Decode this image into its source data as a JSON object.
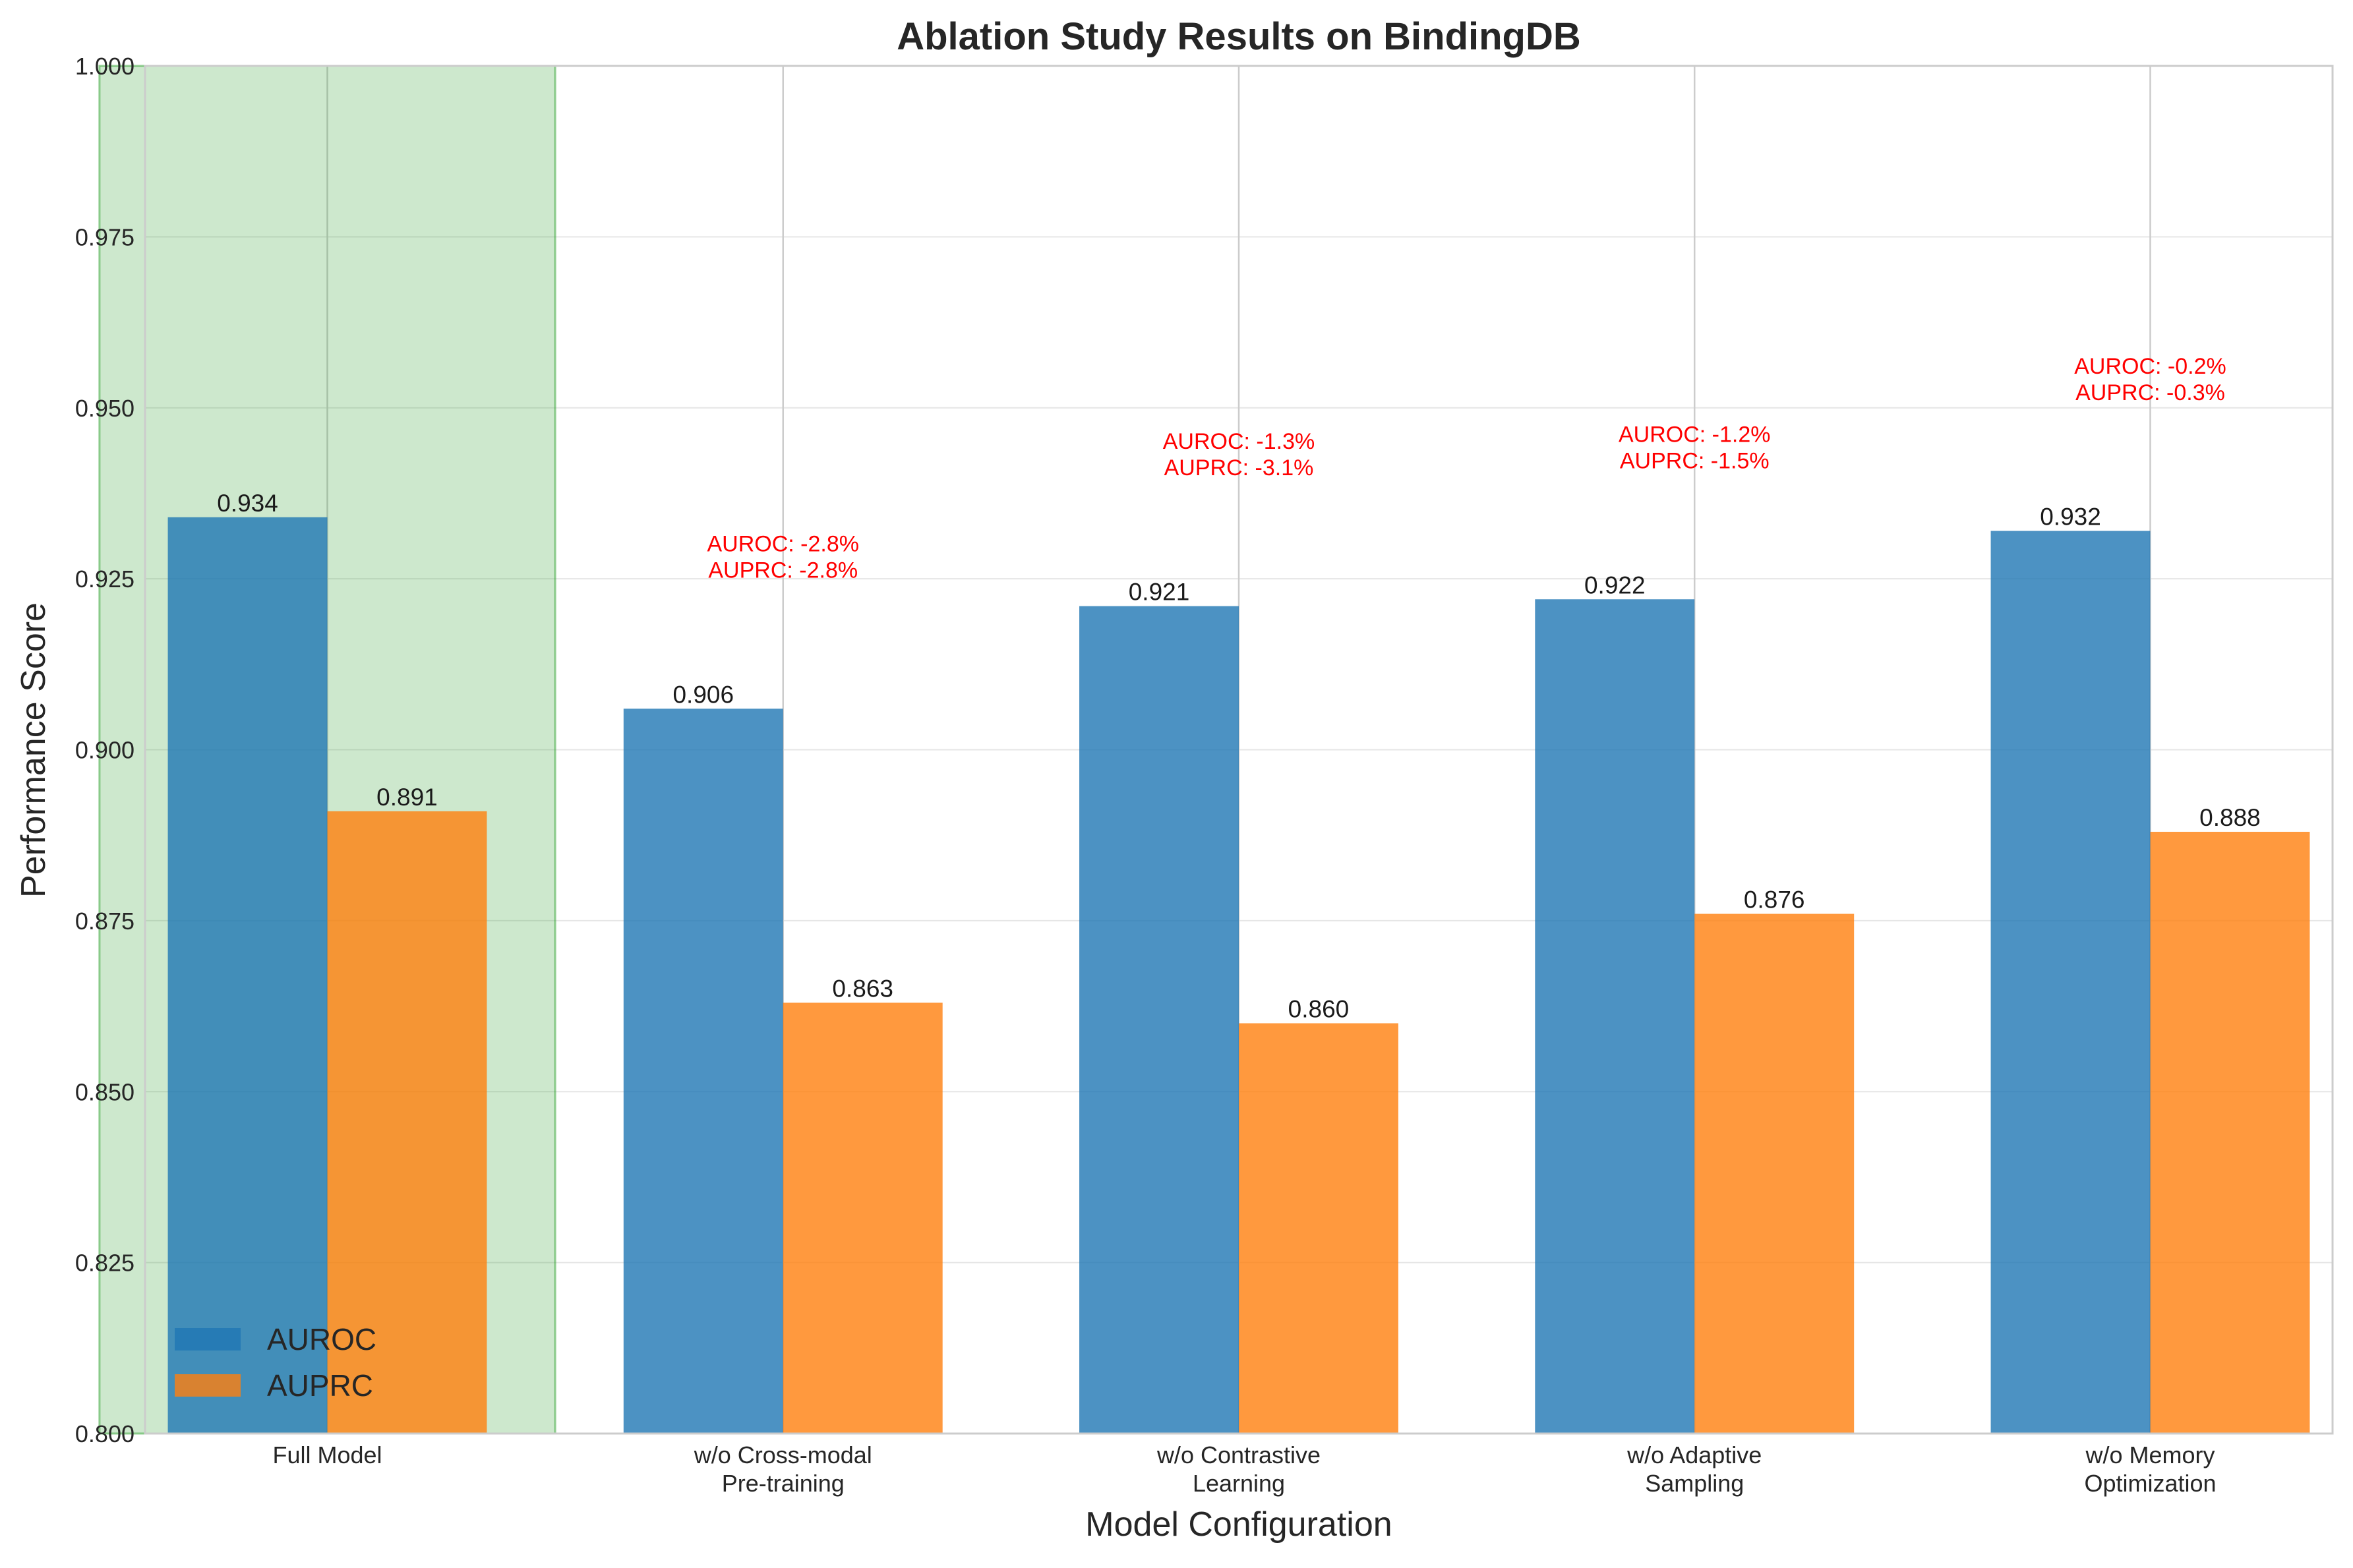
{
  "chart_data": {
    "type": "bar",
    "title": "Ablation Study Results on BindingDB",
    "xlabel": "Model Configuration",
    "ylabel": "Performance Score",
    "ylim": [
      0.8,
      1.0
    ],
    "yticks": [
      "0.800",
      "0.825",
      "0.850",
      "0.875",
      "0.900",
      "0.925",
      "0.950",
      "0.975",
      "1.000"
    ],
    "grid": true,
    "legend_position": "bottom-left",
    "categories": [
      [
        "Full Model"
      ],
      [
        "w/o Cross-modal",
        "Pre-training"
      ],
      [
        "w/o Contrastive",
        "Learning"
      ],
      [
        "w/o Adaptive",
        "Sampling"
      ],
      [
        "w/o Memory",
        "Optimization"
      ]
    ],
    "highlight_category": 0,
    "highlight_color": "#2ca02c",
    "series": [
      {
        "name": "AUROC",
        "color": "#1f77b4",
        "values": [
          0.934,
          0.906,
          0.921,
          0.922,
          0.932
        ],
        "labels": [
          "0.934",
          "0.906",
          "0.921",
          "0.922",
          "0.932"
        ]
      },
      {
        "name": "AUPRC",
        "color": "#ff7f0e",
        "values": [
          0.891,
          0.863,
          0.86,
          0.876,
          0.888
        ],
        "labels": [
          "0.891",
          "0.863",
          "0.860",
          "0.876",
          "0.888"
        ]
      }
    ],
    "annotations": [
      null,
      {
        "y": 0.929,
        "lines": [
          "AUROC: -2.8%",
          "AUPRC: -2.8%"
        ]
      },
      {
        "y": 0.944,
        "lines": [
          "AUROC: -1.3%",
          "AUPRC: -3.1%"
        ]
      },
      {
        "y": 0.945,
        "lines": [
          "AUROC: -1.2%",
          "AUPRC: -1.5%"
        ]
      },
      {
        "y": 0.955,
        "lines": [
          "AUROC: -0.2%",
          "AUPRC: -0.3%"
        ]
      }
    ]
  }
}
